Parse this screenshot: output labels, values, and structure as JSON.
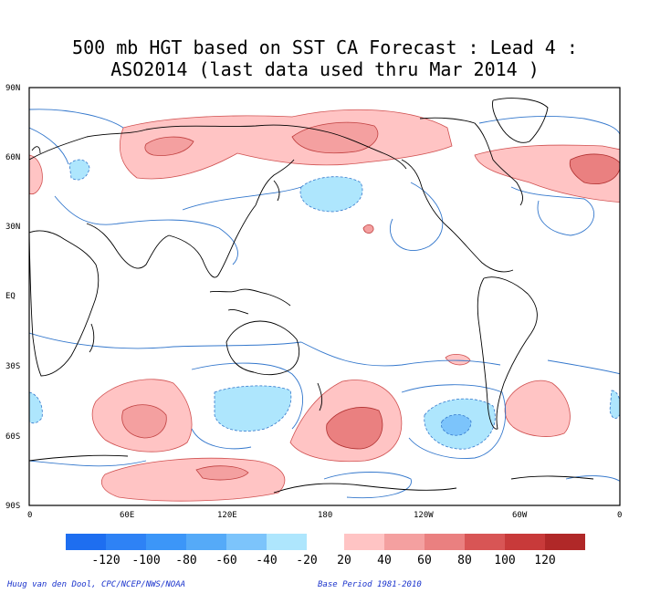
{
  "title": {
    "line1": "500 mb HGT based on SST CA Forecast : Lead 4 :",
    "line2": "ASO2014 (last data used thru Mar 2014 )"
  },
  "map": {
    "projection": "cylindrical-pacific-centered",
    "lat_labels": [
      "90N",
      "60N",
      "30N",
      "EQ",
      "30S",
      "60S",
      "90S"
    ],
    "lon_labels": [
      "0",
      "60E",
      "120E",
      "180",
      "120W",
      "60W",
      "0"
    ],
    "positive_color": "#f08080",
    "negative_color": "#87cefa",
    "contour_color": "#3377cc"
  },
  "colorbar": {
    "neg_labels": [
      "-120",
      "-100",
      "-80",
      "-60",
      "-40",
      "-20"
    ],
    "pos_labels": [
      "20",
      "40",
      "60",
      "80",
      "100",
      "120"
    ],
    "neg_colors": [
      "#1e6ef0",
      "#2e82f5",
      "#3c96f8",
      "#55aaf8",
      "#7cc4fb",
      "#aee6fd"
    ],
    "pos_colors": [
      "#ffc4c4",
      "#f4a0a0",
      "#ea8080",
      "#d85555",
      "#c83a3a",
      "#b02828"
    ]
  },
  "footer": {
    "left": "Huug van den Dool, CPC/NCEP/NWS/NOAA",
    "right": "Base Period 1981-2010"
  }
}
